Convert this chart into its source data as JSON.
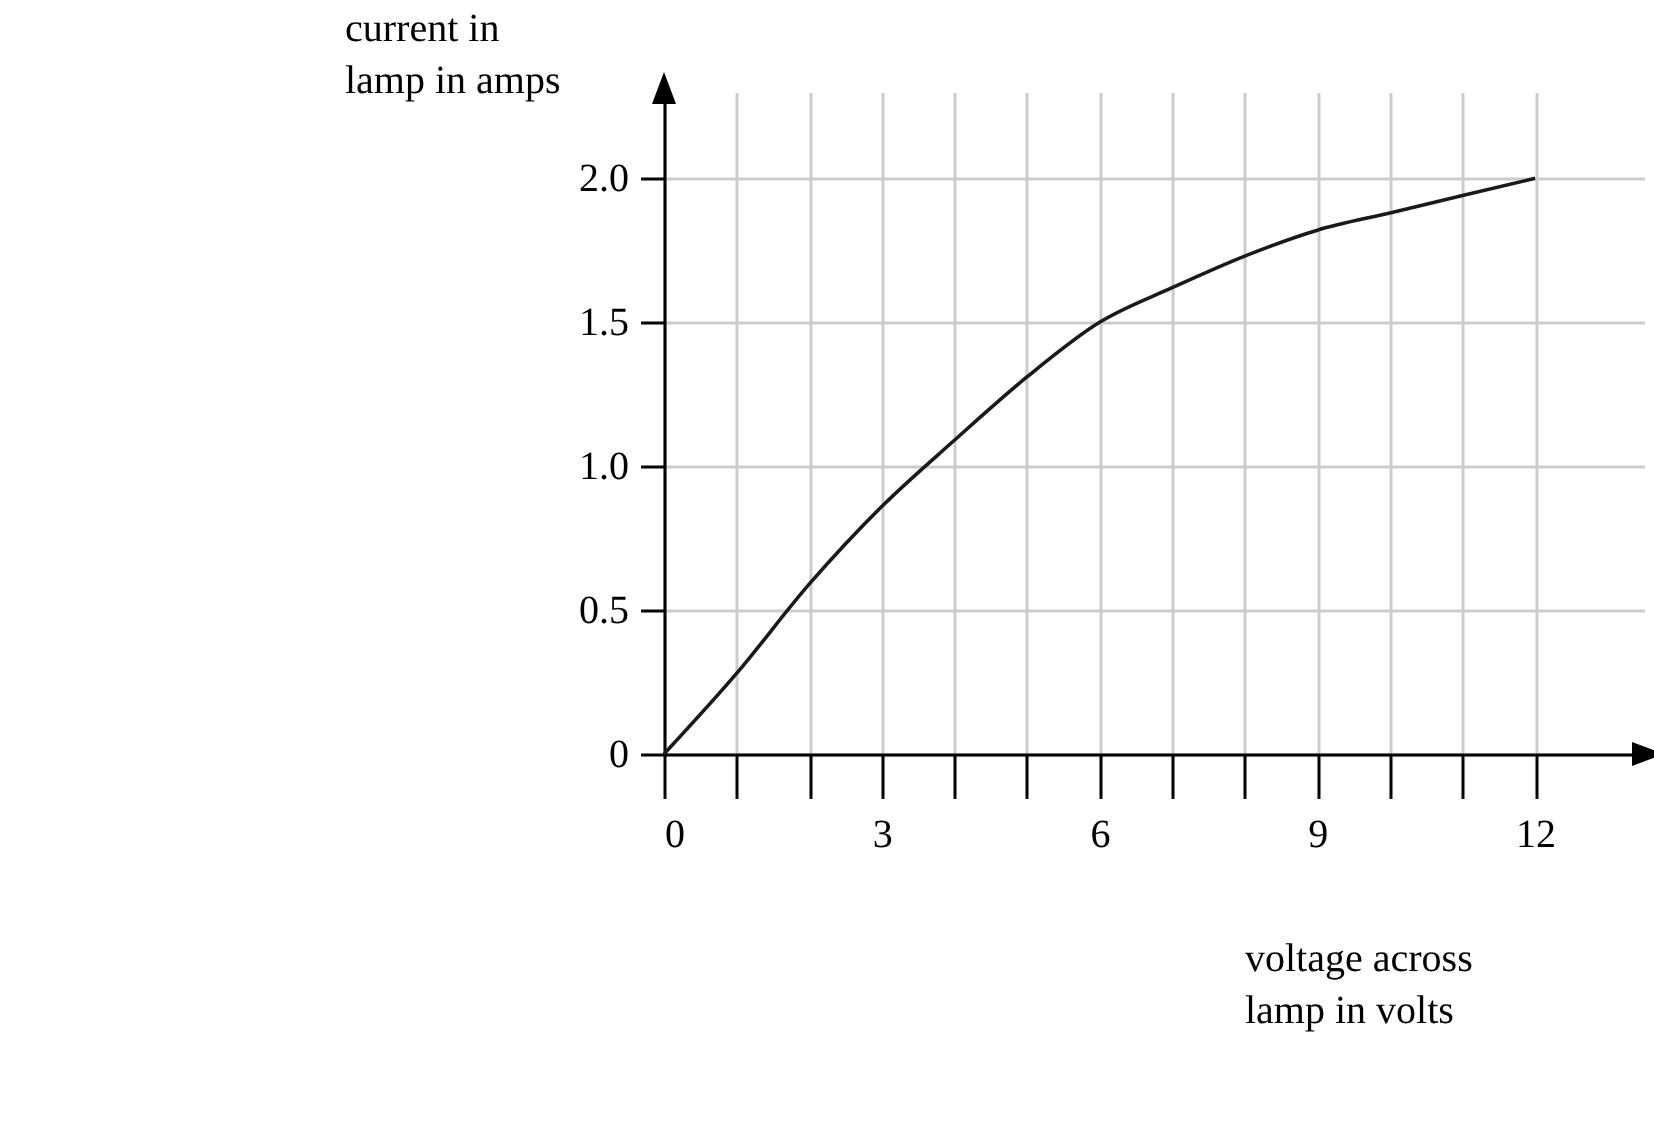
{
  "chart_data": {
    "type": "line",
    "xlabel": "voltage across lamp in volts",
    "ylabel": "current in lamp in amps",
    "x": [
      0,
      1,
      2,
      3,
      4,
      5,
      6,
      7,
      8,
      9,
      10,
      11,
      12
    ],
    "series": [
      {
        "color": "#1a1a1a",
        "values": [
          0,
          0.28,
          0.59,
          0.86,
          1.09,
          1.31,
          1.5,
          1.62,
          1.73,
          1.82,
          1.88,
          1.94,
          2.0
        ]
      }
    ],
    "xlim": [
      0,
      13.5
    ],
    "ylim": [
      0,
      2.3
    ],
    "xticks": [
      0,
      {
        "value": 1,
        "label": null
      },
      {
        "value": 2,
        "label": null
      },
      3,
      {
        "value": 4,
        "label": null
      },
      {
        "value": 5,
        "label": null
      },
      6,
      {
        "value": 7,
        "label": null
      },
      {
        "value": 8,
        "label": null
      },
      9,
      {
        "value": 10,
        "label": null
      },
      {
        "value": 11,
        "label": null
      },
      12
    ],
    "yticks": [
      {
        "value": 0,
        "label": "0"
      },
      {
        "value": 0.5,
        "label": "0.5"
      },
      {
        "value": 1,
        "label": "1.0"
      },
      {
        "value": 1.5,
        "label": "1.5"
      },
      {
        "value": 2,
        "label": "2.0"
      }
    ],
    "grid": true,
    "marker": "none",
    "line_style": "solid"
  }
}
